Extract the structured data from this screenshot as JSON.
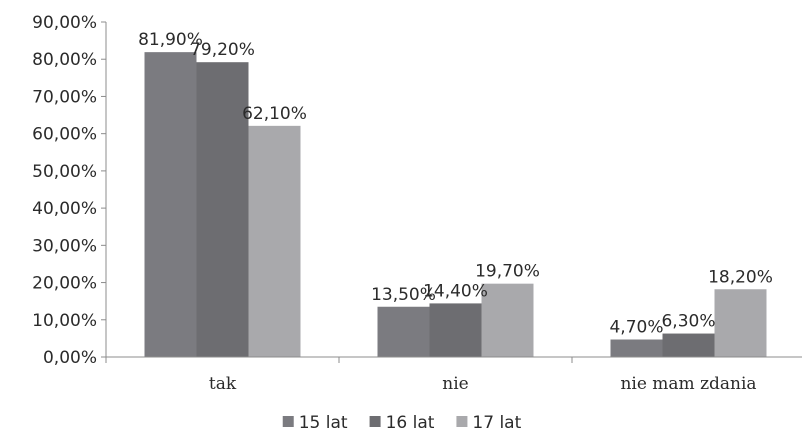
{
  "chart_data": {
    "type": "bar",
    "categories": [
      "tak",
      "nie",
      "nie mam zdania"
    ],
    "series": [
      {
        "name": "15 lat",
        "values": [
          81.9,
          13.5,
          4.7
        ],
        "labels": [
          "81,90%",
          "13,50%",
          "4,70%"
        ],
        "color": "#7b7b80"
      },
      {
        "name": "16 lat",
        "values": [
          79.2,
          14.4,
          6.3
        ],
        "labels": [
          "79,20%",
          "14,40%",
          "6,30%"
        ],
        "color": "#6d6d71"
      },
      {
        "name": "17 lat",
        "values": [
          62.1,
          19.7,
          18.2
        ],
        "labels": [
          "62,10%",
          "19,70%",
          "18,20%"
        ],
        "color": "#a9a9ac"
      }
    ],
    "yticks": [
      "0,00%",
      "10,00%",
      "20,00%",
      "30,00%",
      "40,00%",
      "50,00%",
      "60,00%",
      "70,00%",
      "80,00%",
      "90,00%"
    ],
    "ylim": [
      0,
      90
    ],
    "grid": false,
    "legend": "bottom"
  }
}
